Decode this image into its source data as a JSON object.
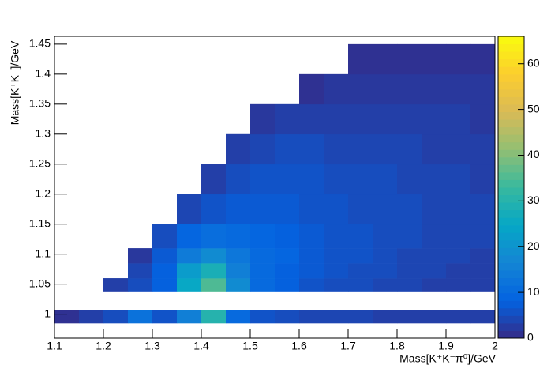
{
  "chart_data": {
    "type": "heatmap",
    "x_label": "Mass[K⁺K⁻π⁰]/GeV",
    "y_label": "Mass[K⁺K⁻]/GeV",
    "xlim": [
      1.1,
      2.0
    ],
    "ylim": [
      0.96,
      1.463
    ],
    "xticks": [
      1.1,
      1.2,
      1.3,
      1.4,
      1.5,
      1.6,
      1.7,
      1.8,
      1.9,
      2
    ],
    "yticks": [
      1,
      1.05,
      1.1,
      1.15,
      1.2,
      1.25,
      1.3,
      1.35,
      1.4,
      1.45
    ],
    "zlim": [
      0,
      66
    ],
    "zticks": [
      0,
      10,
      20,
      30,
      40,
      50,
      60
    ],
    "colorscale": [
      "#352a87",
      "#0363e1",
      "#1485d4",
      "#06a7c6",
      "#38b99e",
      "#92bf73",
      "#d9ba56",
      "#fcce2e",
      "#f9fb0e"
    ],
    "x_bins": [
      1.1,
      1.15,
      1.2,
      1.25,
      1.3,
      1.35,
      1.4,
      1.45,
      1.5,
      1.55,
      1.6,
      1.65,
      1.7,
      1.75,
      1.8,
      1.85,
      1.9,
      1.95,
      2.0
    ],
    "y_bins": [
      0.985,
      1.007,
      1.037,
      1.06,
      1.085,
      1.11,
      1.15,
      1.2,
      1.25,
      1.3,
      1.35,
      1.4,
      1.45
    ],
    "z": [
      [
        1,
        3,
        5,
        12,
        6,
        15,
        30,
        10,
        6,
        5,
        4,
        4,
        4,
        3,
        3,
        3,
        3,
        3
      ],
      [
        null,
        null,
        null,
        null,
        null,
        null,
        null,
        null,
        null,
        null,
        null,
        null,
        null,
        null,
        null,
        null,
        null,
        null
      ],
      [
        null,
        null,
        3,
        5,
        8,
        25,
        35,
        18,
        10,
        8,
        6,
        5,
        5,
        4,
        4,
        3,
        3,
        3
      ],
      [
        null,
        null,
        null,
        4,
        8,
        22,
        28,
        15,
        10,
        8,
        7,
        6,
        5,
        5,
        4,
        4,
        3,
        3
      ],
      [
        null,
        null,
        null,
        2,
        7,
        14,
        18,
        13,
        10,
        9,
        7,
        6,
        6,
        5,
        4,
        4,
        4,
        3
      ],
      [
        null,
        null,
        null,
        null,
        5,
        9,
        11,
        10,
        9,
        8,
        7,
        6,
        6,
        5,
        5,
        4,
        4,
        4
      ],
      [
        null,
        null,
        null,
        null,
        null,
        4,
        6,
        7,
        7,
        7,
        6,
        6,
        5,
        5,
        5,
        4,
        4,
        4
      ],
      [
        null,
        null,
        null,
        null,
        null,
        null,
        3,
        5,
        6,
        6,
        6,
        5,
        5,
        5,
        4,
        4,
        4,
        3
      ],
      [
        null,
        null,
        null,
        null,
        null,
        null,
        null,
        3,
        4,
        5,
        5,
        4,
        4,
        4,
        4,
        3,
        3,
        3
      ],
      [
        null,
        null,
        null,
        null,
        null,
        null,
        null,
        null,
        2,
        3,
        3,
        3,
        3,
        3,
        3,
        3,
        3,
        2
      ],
      [
        null,
        null,
        null,
        null,
        null,
        null,
        null,
        null,
        null,
        null,
        1,
        2,
        2,
        2,
        2,
        2,
        2,
        2
      ],
      [
        null,
        null,
        null,
        null,
        null,
        null,
        null,
        null,
        null,
        null,
        null,
        null,
        1,
        1,
        1,
        1,
        1,
        1
      ]
    ]
  }
}
